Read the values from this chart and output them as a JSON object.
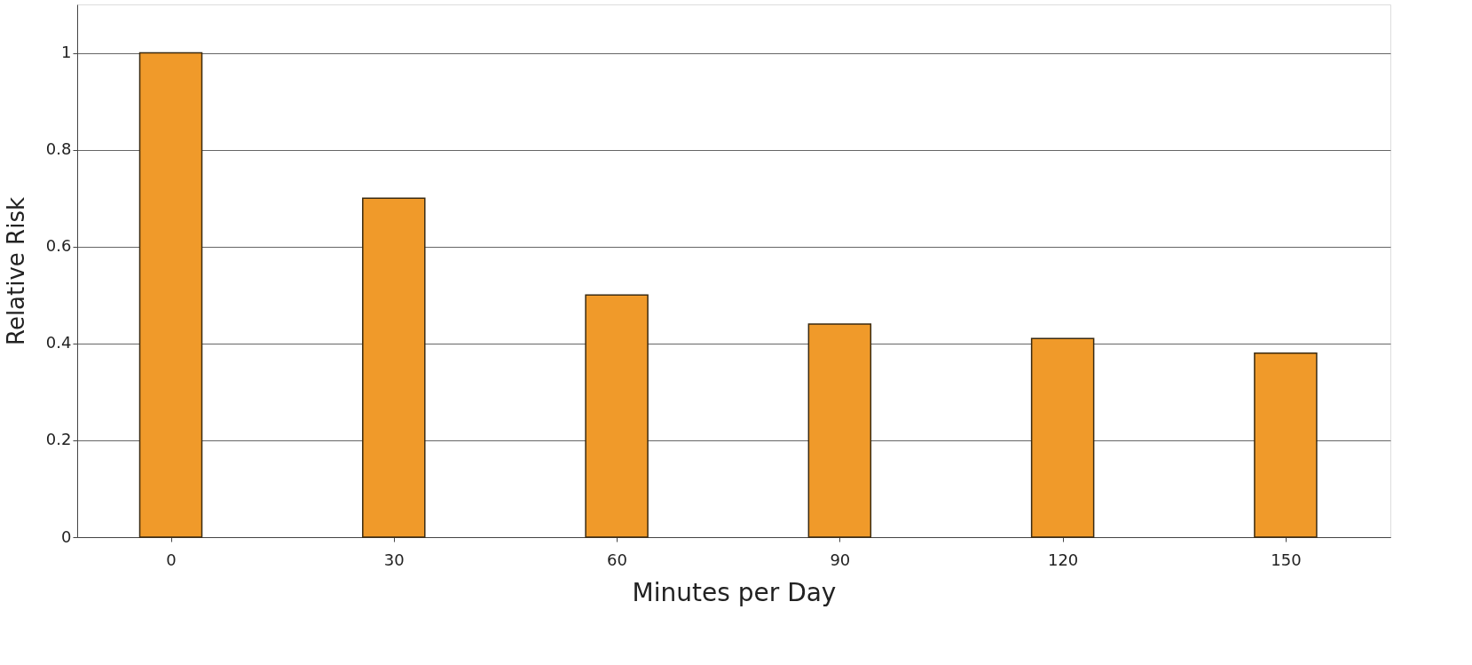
{
  "chart_data": {
    "type": "bar",
    "xlabel": "Minutes per Day",
    "ylabel": "Relative Risk",
    "categories": [
      "0",
      "30",
      "60",
      "90",
      "120",
      "150"
    ],
    "values": [
      1.0,
      0.7,
      0.5,
      0.44,
      0.41,
      0.38
    ],
    "color": "#f09a2a",
    "ylim": [
      0,
      1.1
    ],
    "yticks": [
      0,
      0.2,
      0.4,
      0.6,
      0.8,
      1
    ],
    "grid": "y"
  }
}
